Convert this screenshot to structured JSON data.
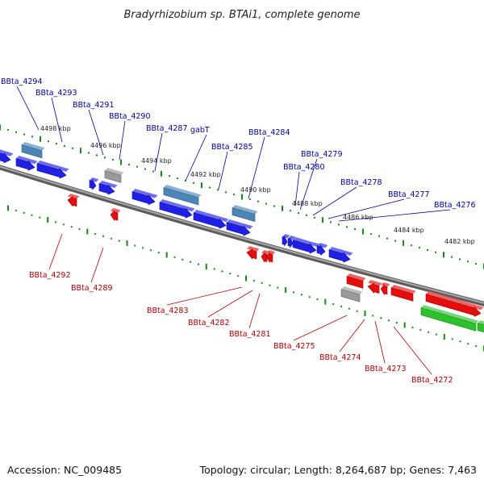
{
  "title": "Bradyrhizobium sp. BTAi1, complete genome",
  "footer": {
    "accession": "Accession: NC_009485",
    "topology": "Topology: circular; Length: 8,264,687 bp; Genes: 7,463"
  },
  "colors": {
    "forward_gene": "#1f1fe6",
    "reverse_gene": "#e60d0d",
    "pseudo_gene": "#9a9a9a",
    "rna_gene": "#4a86b8",
    "other_gene": "#2cc22c",
    "genome_axis": "#7c7c7c",
    "tick": "#1a8a1a",
    "forward_label": "#00009c",
    "reverse_label": "#b40000"
  },
  "ticks": [
    "4498 kbp",
    "4496 kbp",
    "4494 kbp",
    "4492 kbp",
    "4490 kbp",
    "4488 kbp",
    "4486 kbp",
    "4484 kbp",
    "4482 kbp"
  ],
  "forward_labels": [
    "BBta_4294",
    "BBta_4293",
    "BBta_4291",
    "BBta_4290",
    "BBta_4287",
    "gabT",
    "BBta_4285",
    "BBta_4284",
    "BBta_4279",
    "BBta_4280",
    "BBta_4278",
    "BBta_4277",
    "BBta_4276"
  ],
  "reverse_labels": [
    "BBta_4292",
    "BBta_4289",
    "BBta_4283",
    "BBta_4282",
    "BBta_4281",
    "BBta_4275",
    "BBta_4274",
    "BBta_4273",
    "BBta_4272"
  ]
}
